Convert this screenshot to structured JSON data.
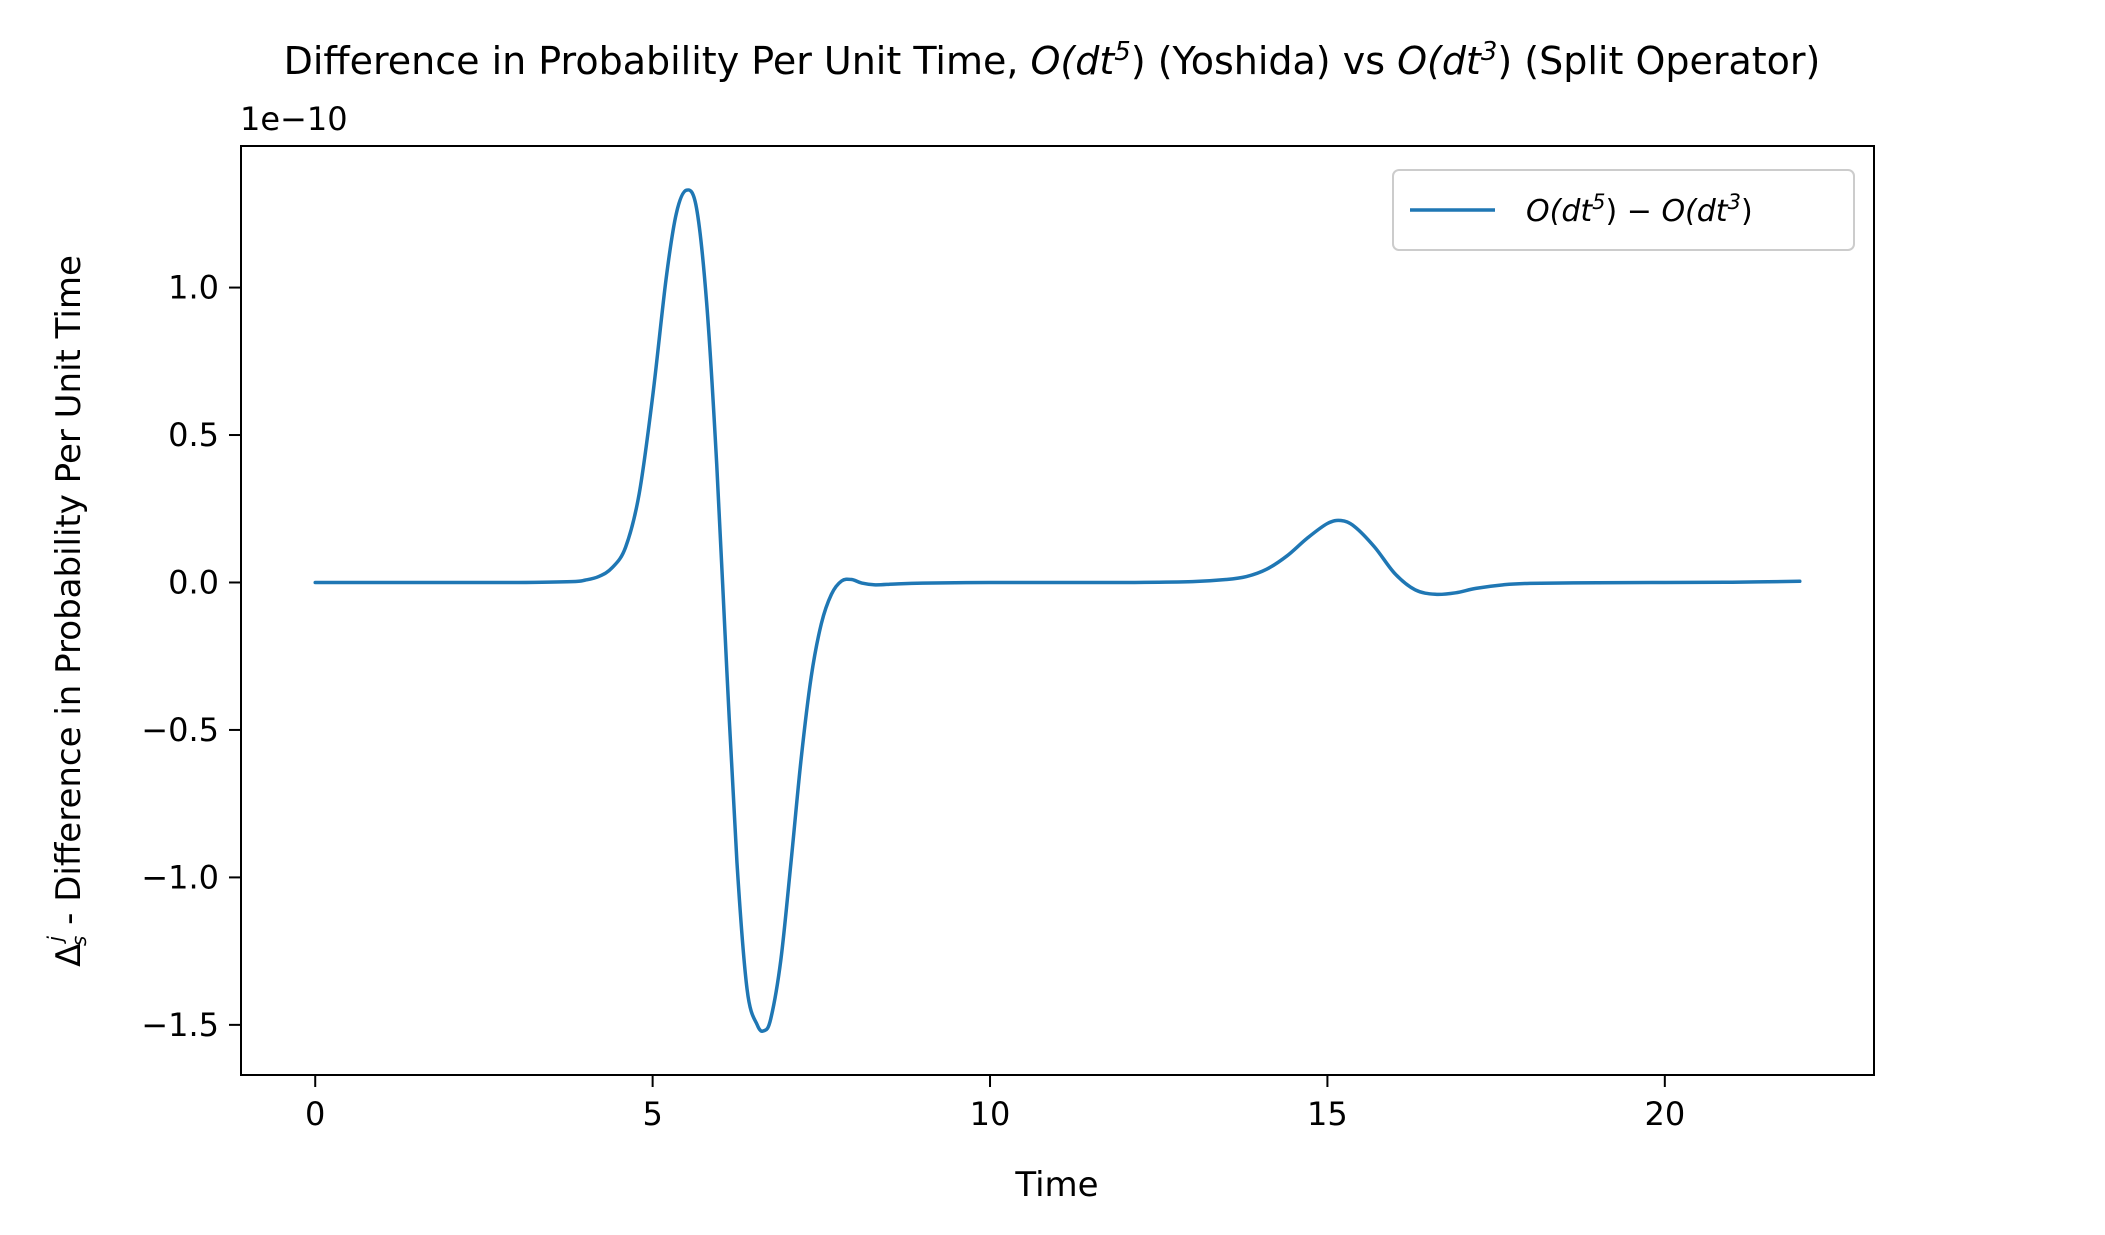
{
  "chart_data": {
    "type": "line",
    "title": {
      "prefix": "Difference in Probability Per Unit Time, ",
      "order_a": "O(dt",
      "exp_a": "5",
      "close_a": ")",
      "method_a": " (Yoshida) vs ",
      "order_b": "O(dt",
      "exp_b": "3",
      "close_b": ")",
      "method_b": " (Split Operator)"
    },
    "xlabel": "Time",
    "ylabel": {
      "symbol": "Δ",
      "sup": "j",
      "sub": "s",
      "text": " - Difference in Probability Per Unit Time"
    },
    "y_offset_label": "1e−10",
    "x_ticks": [
      0,
      5,
      10,
      15,
      20
    ],
    "y_ticks": [
      {
        "value": 1.0,
        "label": "1.0"
      },
      {
        "value": 0.5,
        "label": "0.5"
      },
      {
        "value": 0.0,
        "label": "0.0"
      },
      {
        "value": -0.5,
        "label": "−0.5"
      },
      {
        "value": -1.0,
        "label": "−1.0"
      },
      {
        "value": -1.5,
        "label": "−1.5"
      }
    ],
    "xlim": [
      -1.1,
      23.1
    ],
    "ylim": [
      -1.67,
      1.48
    ],
    "y_units_multiplier": 1e-10,
    "grid": false,
    "legend_position": "top-right",
    "series": [
      {
        "name": {
          "a": "O(dt",
          "a_exp": "5",
          "a_close": ")",
          "minus": " − ",
          "b": "O(dt",
          "b_exp": "3",
          "b_close": ")"
        },
        "color": "#1f77b4",
        "x": [
          0,
          1,
          2,
          3,
          3.8,
          4.0,
          4.2,
          4.4,
          4.6,
          4.8,
          5.0,
          5.2,
          5.35,
          5.5,
          5.65,
          5.8,
          5.95,
          6.1,
          6.25,
          6.4,
          6.55,
          6.65,
          6.75,
          6.9,
          7.05,
          7.2,
          7.35,
          7.5,
          7.65,
          7.8,
          7.95,
          8.1,
          8.3,
          8.6,
          9.0,
          10,
          11,
          12,
          13,
          13.5,
          13.8,
          14.1,
          14.4,
          14.7,
          15.0,
          15.2,
          15.4,
          15.7,
          16.0,
          16.3,
          16.6,
          16.9,
          17.2,
          17.6,
          18.0,
          19,
          20,
          21,
          22
        ],
        "values": [
          0,
          0,
          0,
          0,
          0.003,
          0.008,
          0.02,
          0.05,
          0.12,
          0.3,
          0.63,
          1.03,
          1.25,
          1.33,
          1.27,
          0.95,
          0.4,
          -0.3,
          -0.95,
          -1.38,
          -1.5,
          -1.52,
          -1.48,
          -1.28,
          -0.95,
          -0.6,
          -0.32,
          -0.14,
          -0.04,
          0.005,
          0.01,
          -0.002,
          -0.008,
          -0.005,
          -0.002,
          0,
          0,
          0,
          0.003,
          0.01,
          0.02,
          0.045,
          0.09,
          0.15,
          0.2,
          0.21,
          0.19,
          0.12,
          0.03,
          -0.025,
          -0.04,
          -0.035,
          -0.02,
          -0.008,
          -0.003,
          -0.001,
          0,
          0.001,
          0.004
        ]
      }
    ]
  }
}
